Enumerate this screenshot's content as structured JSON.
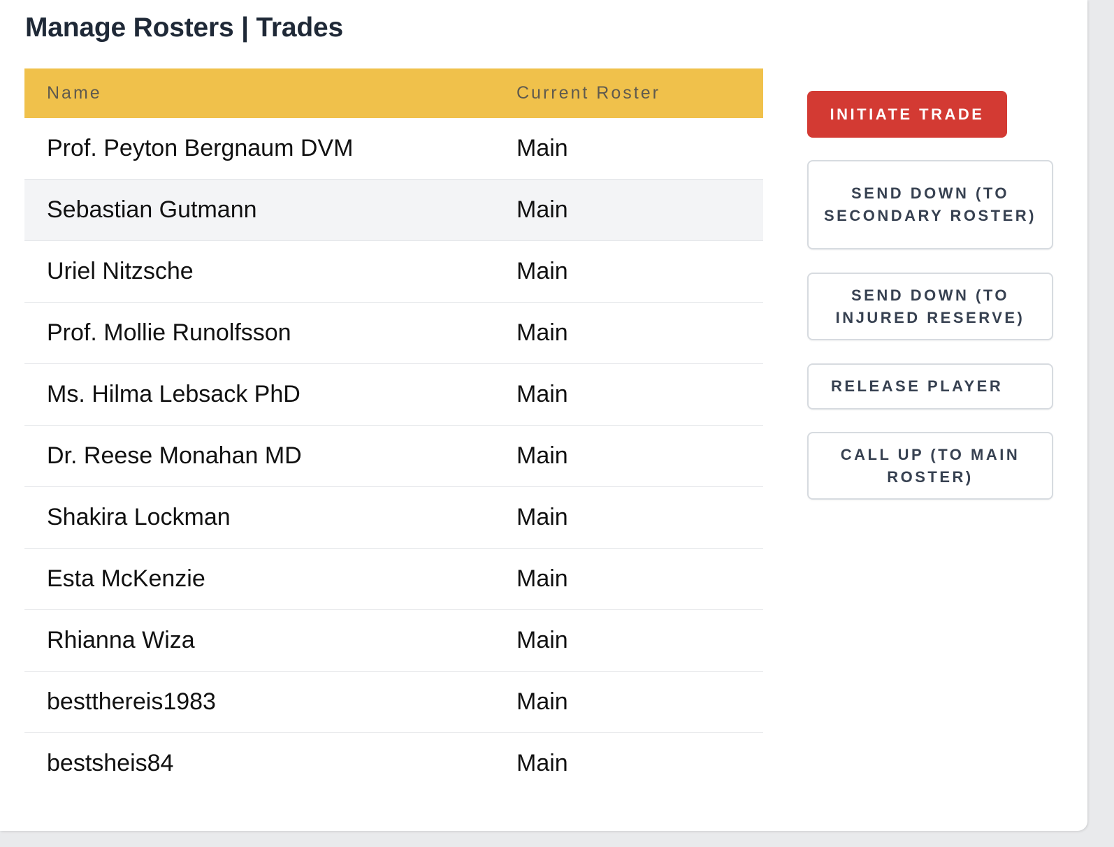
{
  "page": {
    "title": "Manage Rosters | Trades"
  },
  "table": {
    "headers": {
      "name": "Name",
      "roster": "Current Roster"
    },
    "rows": [
      {
        "name": "Prof. Peyton Bergnaum DVM",
        "roster": "Main"
      },
      {
        "name": "Sebastian Gutmann",
        "roster": "Main"
      },
      {
        "name": "Uriel Nitzsche",
        "roster": "Main"
      },
      {
        "name": "Prof. Mollie Runolfsson",
        "roster": "Main"
      },
      {
        "name": "Ms. Hilma Lebsack PhD",
        "roster": "Main"
      },
      {
        "name": "Dr. Reese Monahan MD",
        "roster": "Main"
      },
      {
        "name": "Shakira Lockman",
        "roster": "Main"
      },
      {
        "name": "Esta McKenzie",
        "roster": "Main"
      },
      {
        "name": "Rhianna Wiza",
        "roster": "Main"
      },
      {
        "name": "bestthereis1983",
        "roster": "Main"
      },
      {
        "name": "bestsheis84",
        "roster": "Main"
      }
    ],
    "header_color": "#f0c14b",
    "hovered_row_index": 1
  },
  "actions": {
    "initiate_trade": "INITIATE TRADE",
    "send_down_secondary": "SEND DOWN (TO SECONDARY ROSTER)",
    "send_down_injured": "SEND DOWN (TO INJURED RESERVE)",
    "release_player": "RELEASE PLAYER",
    "call_up_main": "CALL UP (TO MAIN ROSTER)",
    "primary_color": "#d33a33"
  }
}
